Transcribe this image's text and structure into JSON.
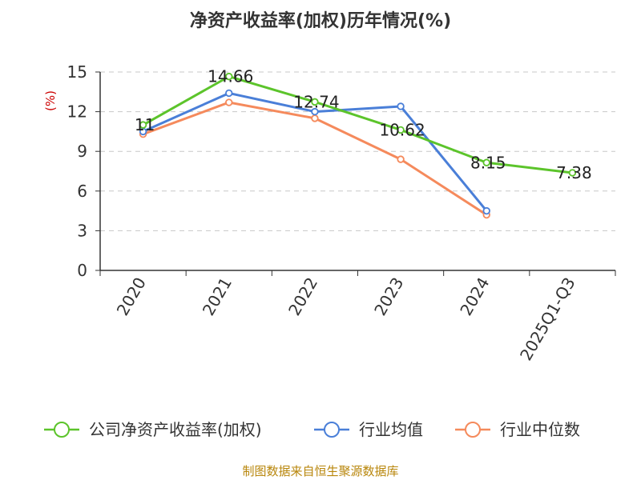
{
  "chart_data": {
    "type": "line",
    "title": "净资产收益率(加权)历年情况(%)",
    "ylabel": "(%)",
    "xlabel": "",
    "categories": [
      "2020",
      "2021",
      "2022",
      "2023",
      "2024",
      "2025Q1-Q3"
    ],
    "ylim": [
      0,
      15
    ],
    "yticks": [
      0,
      3,
      6,
      9,
      12,
      15
    ],
    "grid": true,
    "legend_position": "bottom",
    "series": [
      {
        "name": "公司净资产收益率(加权)",
        "color": "#5cc42b",
        "values": [
          11,
          14.66,
          12.74,
          10.62,
          8.15,
          7.38
        ],
        "labels": [
          "11",
          "14.66",
          "12.74",
          "10.62",
          "8.15",
          "7.38"
        ]
      },
      {
        "name": "行业均值",
        "color": "#4a7fd8",
        "values": [
          10.5,
          13.4,
          12.0,
          12.4,
          4.5,
          null
        ]
      },
      {
        "name": "行业中位数",
        "color": "#f58a5c",
        "values": [
          10.3,
          12.7,
          11.5,
          8.4,
          4.2,
          null
        ]
      }
    ],
    "source": "制图数据来自恒生聚源数据库"
  }
}
